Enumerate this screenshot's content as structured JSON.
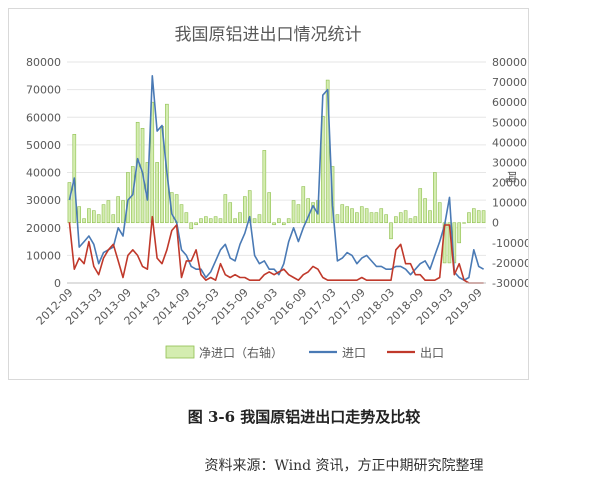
{
  "figure": {
    "title": "图 3-6  我国原铝进出口走势及比较",
    "source": "资料来源：Wind 资讯，方正中期研究院整理"
  },
  "chart_data": {
    "type": "bar+line",
    "title": "我国原铝进出口情况统计",
    "y_left": {
      "ylim": [
        0,
        80000
      ],
      "ticks": [
        "0",
        "10000",
        "20000",
        "30000",
        "40000",
        "50000",
        "60000",
        "70000",
        "80000"
      ]
    },
    "y_right": {
      "label": "吨",
      "ylim": [
        -30000,
        80000
      ],
      "ticks": [
        "-30000",
        "-20000",
        "-10000",
        "0",
        "10000",
        "20000",
        "30000",
        "40000",
        "50000",
        "60000",
        "70000",
        "80000"
      ]
    },
    "x_tick_labels": [
      "2012-09",
      "2013-03",
      "2013-09",
      "2014-03",
      "2014-09",
      "2015-03",
      "2015-09",
      "2016-03",
      "2016-09",
      "2017-03",
      "2017-09",
      "2018-03",
      "2018-09",
      "2019-03",
      "2019-09"
    ],
    "legend": [
      "净进口（右轴）",
      "进口",
      "出口"
    ],
    "colors": {
      "net": "#d4edb0",
      "net_border": "#8fbf4f",
      "import": "#4a7ab5",
      "export": "#c0392b"
    },
    "x": [
      "2012-09",
      "2012-10",
      "2012-11",
      "2012-12",
      "2013-01",
      "2013-02",
      "2013-03",
      "2013-04",
      "2013-05",
      "2013-06",
      "2013-07",
      "2013-08",
      "2013-09",
      "2013-10",
      "2013-11",
      "2013-12",
      "2014-01",
      "2014-02",
      "2014-03",
      "2014-04",
      "2014-05",
      "2014-06",
      "2014-07",
      "2014-08",
      "2014-09",
      "2014-10",
      "2014-11",
      "2014-12",
      "2015-01",
      "2015-02",
      "2015-03",
      "2015-04",
      "2015-05",
      "2015-06",
      "2015-07",
      "2015-08",
      "2015-09",
      "2015-10",
      "2015-11",
      "2015-12",
      "2016-01",
      "2016-02",
      "2016-03",
      "2016-04",
      "2016-05",
      "2016-06",
      "2016-07",
      "2016-08",
      "2016-09",
      "2016-10",
      "2016-11",
      "2016-12",
      "2017-01",
      "2017-02",
      "2017-03",
      "2017-04",
      "2017-05",
      "2017-06",
      "2017-07",
      "2017-08",
      "2017-09",
      "2017-10",
      "2017-11",
      "2017-12",
      "2018-01",
      "2018-02",
      "2018-03",
      "2018-04",
      "2018-05",
      "2018-06",
      "2018-07",
      "2018-08",
      "2018-09",
      "2018-10",
      "2018-11",
      "2018-12",
      "2019-01",
      "2019-02",
      "2019-03",
      "2019-04",
      "2019-05",
      "2019-06",
      "2019-07",
      "2019-08",
      "2019-09",
      "2019-10"
    ],
    "series": [
      {
        "name": "净进口（右轴）",
        "axis": "right",
        "values": [
          20000,
          44000,
          8000,
          2000,
          7000,
          6000,
          4000,
          9000,
          11000,
          4000,
          13000,
          11000,
          25000,
          28000,
          50000,
          47000,
          30000,
          60000,
          30000,
          48000,
          59000,
          15000,
          14000,
          9000,
          5000,
          -3000,
          -1000,
          2000,
          3000,
          2000,
          3000,
          2000,
          14000,
          10000,
          2000,
          5000,
          13000,
          16000,
          2000,
          4000,
          36000,
          15000,
          -1000,
          2000,
          -1000,
          2000,
          11000,
          9000,
          18000,
          12000,
          10000,
          11000,
          53000,
          71000,
          28000,
          4000,
          9000,
          8000,
          7000,
          5000,
          8000,
          7000,
          5000,
          5000,
          7000,
          4000,
          -8000,
          3000,
          5000,
          6000,
          2000,
          3000,
          17000,
          12000,
          6000,
          25000,
          10000,
          -20000,
          -20000,
          -20000,
          -10000,
          0,
          5000,
          7000,
          6000,
          6000
        ]
      },
      {
        "name": "进口",
        "axis": "left",
        "values": [
          30000,
          38000,
          13000,
          15000,
          17000,
          14000,
          7000,
          11000,
          12000,
          13000,
          20000,
          17000,
          30000,
          32000,
          45000,
          40000,
          30000,
          75000,
          55000,
          57000,
          40000,
          25000,
          22000,
          12000,
          10000,
          6000,
          5000,
          5000,
          2000,
          4000,
          8000,
          12000,
          14000,
          9000,
          8000,
          14000,
          18000,
          24000,
          10000,
          7000,
          8000,
          5000,
          5000,
          3000,
          7000,
          15000,
          20000,
          15000,
          20000,
          24000,
          28000,
          25000,
          68000,
          70000,
          28000,
          8000,
          9000,
          11000,
          10000,
          7000,
          9000,
          10000,
          8000,
          6000,
          6000,
          5000,
          5000,
          6000,
          6000,
          5000,
          3000,
          5000,
          7000,
          8000,
          5000,
          10000,
          15000,
          21000,
          31000,
          4000,
          2000,
          1000,
          2000,
          12000,
          6000,
          5000
        ]
      },
      {
        "name": "出口",
        "axis": "left",
        "values": [
          22000,
          5000,
          9000,
          7000,
          15000,
          6000,
          3000,
          9000,
          12000,
          14000,
          8000,
          2000,
          10000,
          12000,
          10000,
          6000,
          5000,
          24000,
          9000,
          7000,
          12000,
          19000,
          21000,
          2000,
          8000,
          8000,
          12000,
          3000,
          1000,
          2000,
          1000,
          7000,
          3000,
          2000,
          3000,
          2000,
          2000,
          1000,
          1000,
          1000,
          3000,
          4000,
          3000,
          4000,
          5000,
          3000,
          2000,
          1000,
          3000,
          4000,
          6000,
          5000,
          2000,
          1000,
          1000,
          1000,
          1000,
          1000,
          1000,
          1000,
          2000,
          1000,
          1000,
          1000,
          1000,
          1000,
          1000,
          12000,
          14000,
          7000,
          7000,
          3000,
          3000,
          1000,
          1000,
          1000,
          2000,
          21000,
          21000,
          3000,
          7000,
          1000,
          0,
          0,
          0,
          0
        ]
      }
    ]
  }
}
